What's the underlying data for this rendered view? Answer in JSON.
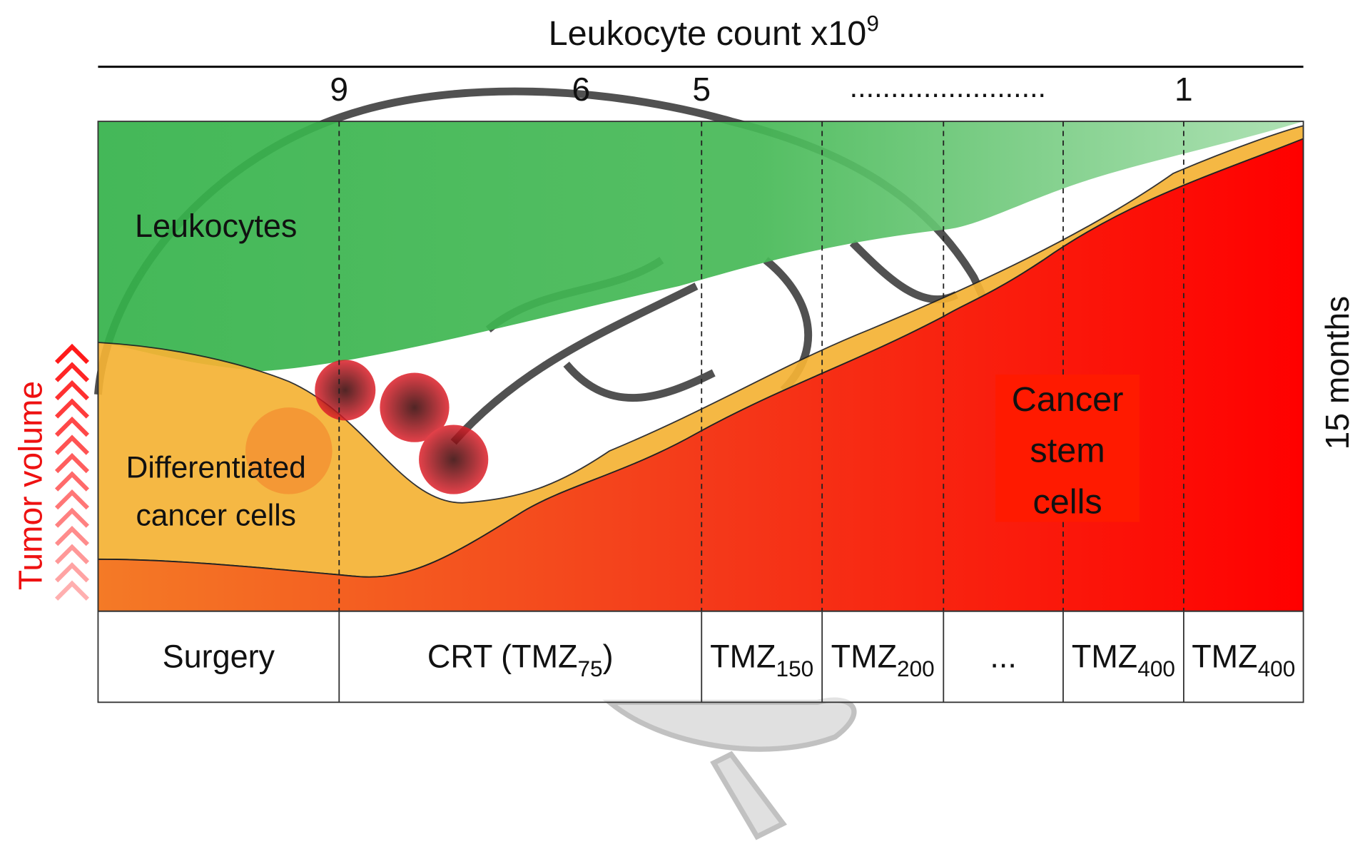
{
  "title": {
    "text": "Leukocyte count x10",
    "superscript": "9"
  },
  "counts": [
    "9",
    "6",
    "5",
    "1"
  ],
  "ellipsis": "........................",
  "regions": {
    "leukocytes": "Leukocytes",
    "differentiated": [
      "Differentiated",
      "cancer cells"
    ],
    "stem": [
      "Cancer",
      "stem",
      "cells"
    ]
  },
  "side_labels": {
    "left": "Tumor volume",
    "right": "15 months"
  },
  "treatments": [
    {
      "text": "Surgery"
    },
    {
      "text": "CRT   (TMZ",
      "sub": "75",
      "after": ")"
    },
    {
      "text": "TMZ",
      "sub": "150"
    },
    {
      "text": "TMZ",
      "sub": "200"
    },
    {
      "text": "..."
    },
    {
      "text": "TMZ",
      "sub": "400"
    },
    {
      "text": "TMZ",
      "sub": "400"
    }
  ]
}
